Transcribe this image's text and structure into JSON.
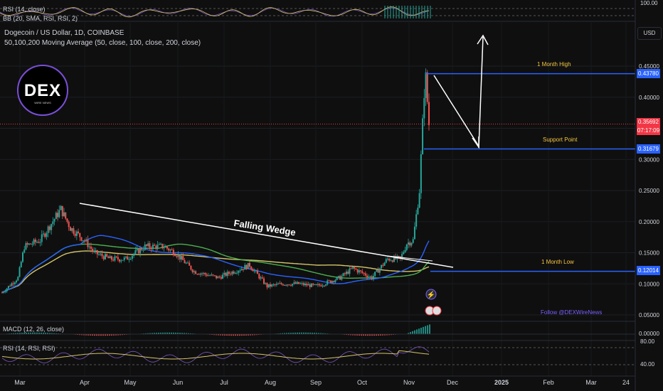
{
  "colors": {
    "up": "#26a69a",
    "down": "#ef5350",
    "ma50": "#2962ff",
    "ma100": "#4caf50",
    "ma200": "#d4c56a",
    "level": "#2962ff",
    "gold": "#f5c542",
    "price": "#f23645"
  },
  "header": {
    "symbol": "Dogecoin / US Dollar, 1D, COINBASE",
    "ma_legend": "50,100,200 Moving Average (50, close, 100, close, 200, close)"
  },
  "top_pane": {
    "rsi_label": "RSI (14, close)",
    "bb_label": "BB (20, SMA, RSI, RSI, 2)",
    "tick": "100.00"
  },
  "logo": {
    "text": "DEX",
    "sub": "WIRE NEWS"
  },
  "currency_button": "USD",
  "annotations": {
    "one_month_high": "1 Month High",
    "support_point": "Support Point",
    "one_month_low": "1 Month Low",
    "falling_wedge": "Falling Wedge",
    "follow": "Follow @DEXWireNews"
  },
  "price_tags": {
    "high": "0.43780",
    "current": "0.35692",
    "countdown": "07:17:09",
    "support": "0.31679",
    "low": "0.12014"
  },
  "macd": {
    "label": "MACD (12, 26, close)",
    "tick": "0.00000"
  },
  "rsi": {
    "label": "RSI (14, RSI, RSI)",
    "ticks": [
      "80.00",
      "40.00"
    ]
  },
  "chart_data": {
    "type": "candlestick",
    "title": "Dogecoin / US Dollar, 1D, COINBASE",
    "y_ticks": [
      0.45,
      0.4,
      0.35,
      0.3,
      0.25,
      0.2,
      0.15,
      0.1,
      0.05
    ],
    "y_tick_labels": [
      "0.45000",
      "0.40000",
      "0.35000",
      "0.30000",
      "0.25000",
      "0.20000",
      "0.15000",
      "0.10000",
      "0.05000"
    ],
    "ylim": [
      0.02,
      0.5
    ],
    "x_labels": [
      "Mar",
      "Apr",
      "May",
      "Jun",
      "Jul",
      "Aug",
      "Sep",
      "Oct",
      "Nov",
      "Dec",
      "2025",
      "Feb",
      "Mar",
      "24"
    ],
    "x_label_months": [
      2024.16,
      2024.25,
      2024.33,
      2024.42,
      2024.5,
      2024.58,
      2024.67,
      2024.75,
      2024.84,
      2024.92,
      2025.0,
      2025.09,
      2025.16,
      2025.24
    ],
    "price_anchor_points": [
      [
        "2024-02-20",
        0.086
      ],
      [
        "2024-03-01",
        0.11
      ],
      [
        "2024-03-05",
        0.16
      ],
      [
        "2024-03-15",
        0.17
      ],
      [
        "2024-03-28",
        0.22
      ],
      [
        "2024-04-03",
        0.19
      ],
      [
        "2024-04-12",
        0.17
      ],
      [
        "2024-04-18",
        0.15
      ],
      [
        "2024-04-28",
        0.14
      ],
      [
        "2024-05-08",
        0.14
      ],
      [
        "2024-05-20",
        0.16
      ],
      [
        "2024-06-01",
        0.16
      ],
      [
        "2024-06-08",
        0.15
      ],
      [
        "2024-06-20",
        0.12
      ],
      [
        "2024-07-05",
        0.11
      ],
      [
        "2024-07-15",
        0.12
      ],
      [
        "2024-07-25",
        0.13
      ],
      [
        "2024-08-05",
        0.096
      ],
      [
        "2024-08-15",
        0.1
      ],
      [
        "2024-08-25",
        0.1
      ],
      [
        "2024-09-05",
        0.096
      ],
      [
        "2024-09-20",
        0.11
      ],
      [
        "2024-09-28",
        0.125
      ],
      [
        "2024-10-10",
        0.11
      ],
      [
        "2024-10-20",
        0.14
      ],
      [
        "2024-10-28",
        0.14
      ],
      [
        "2024-11-01",
        0.165
      ],
      [
        "2024-11-05",
        0.17
      ],
      [
        "2024-11-09",
        0.25
      ],
      [
        "2024-11-12",
        0.41
      ],
      [
        "2024-11-13",
        0.43
      ],
      [
        "2024-11-15",
        0.35692
      ]
    ],
    "levels": {
      "one_month_high": 0.4378,
      "support_point": 0.31679,
      "one_month_low": 0.12014
    },
    "moving_averages": [
      "50",
      "100",
      "200"
    ]
  }
}
